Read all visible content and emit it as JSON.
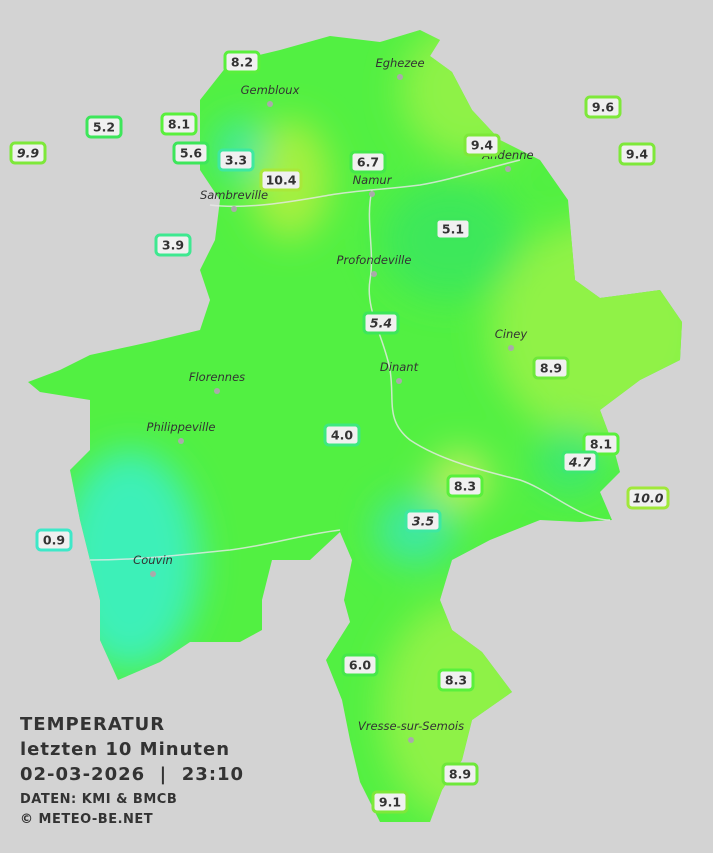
{
  "title": {
    "heading": "TEMPERATUR",
    "period": "letzten 10 Minuten",
    "datetime": "02-03-2026  |  23:10",
    "source": "DATEN: KMI & BMCB",
    "copyright": "© METEO-BE.NET"
  },
  "cities": [
    "Eghezee",
    "Gembloux",
    "Andenne",
    "Namur",
    "Sambreville",
    "Profondeville",
    "Ciney",
    "Florennes",
    "Dinant",
    "Philippeville",
    "Couvin",
    "Vresse-sur-Semois"
  ],
  "stations": [
    {
      "value": "8.2",
      "color": "#59f03c"
    },
    {
      "value": "5.2",
      "color": "#3de65a"
    },
    {
      "value": "8.1",
      "color": "#59f03c"
    },
    {
      "value": "9.9",
      "color": "#7ee83a",
      "italic": true
    },
    {
      "value": "5.6",
      "color": "#3de65a"
    },
    {
      "value": "3.3",
      "color": "#3ee8a0"
    },
    {
      "value": "10.4",
      "color": "#a8e83a"
    },
    {
      "value": "6.7",
      "color": "#45e84a"
    },
    {
      "value": "9.4",
      "color": "#7ee83a"
    },
    {
      "value": "9.6",
      "color": "#7ee83a"
    },
    {
      "value": "9.4",
      "color": "#7ee83a"
    },
    {
      "value": "3.9",
      "color": "#3ee890"
    },
    {
      "value": "5.1",
      "color": "#3de65a"
    },
    {
      "value": "5.4",
      "color": "#3de65a",
      "italic": true
    },
    {
      "value": "8.9",
      "color": "#6ee83a"
    },
    {
      "value": "4.0",
      "color": "#3ee880"
    },
    {
      "value": "8.1",
      "color": "#59f03c"
    },
    {
      "value": "4.7",
      "color": "#3ee870",
      "italic": true
    },
    {
      "value": "8.3",
      "color": "#59f03c"
    },
    {
      "value": "10.0",
      "color": "#a0e83a",
      "italic": true
    },
    {
      "value": "3.5",
      "color": "#3ee8a0",
      "italic": true
    },
    {
      "value": "0.9",
      "color": "#3ee8c8"
    },
    {
      "value": "6.0",
      "color": "#45e84a"
    },
    {
      "value": "8.3",
      "color": "#59f03c"
    },
    {
      "value": "8.9",
      "color": "#6ee83a"
    },
    {
      "value": "9.1",
      "color": "#7ee83a"
    }
  ]
}
